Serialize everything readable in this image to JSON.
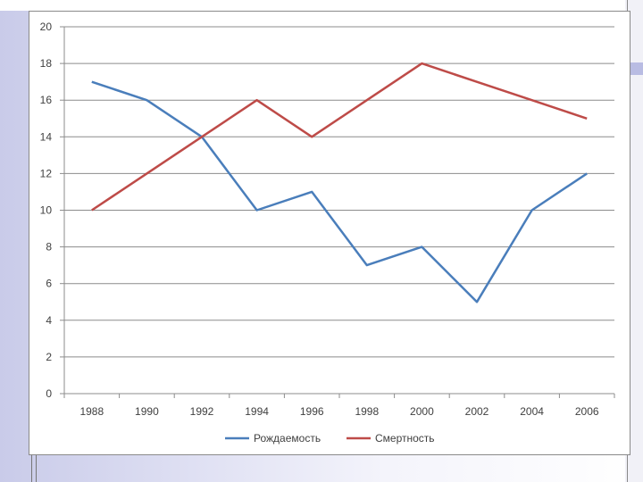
{
  "chart_data": {
    "type": "line",
    "categories": [
      "1988",
      "1990",
      "1992",
      "1994",
      "1996",
      "1998",
      "2000",
      "2002",
      "2004",
      "2006"
    ],
    "series": [
      {
        "name": "Рождаемость",
        "values": [
          17,
          16,
          14,
          10,
          11,
          7,
          8,
          5,
          10,
          12
        ],
        "color": "#4a7ebb"
      },
      {
        "name": "Смертность",
        "values": [
          10,
          12,
          14,
          16,
          14,
          16,
          18,
          17,
          16,
          15
        ],
        "color": "#be4b48"
      }
    ],
    "yticks": [
      "0",
      "2",
      "4",
      "6",
      "8",
      "10",
      "12",
      "14",
      "16",
      "18",
      "20"
    ],
    "ylim": [
      0,
      20
    ],
    "grid": true,
    "legend_position": "bottom",
    "title": "",
    "xlabel": "",
    "ylabel": ""
  }
}
